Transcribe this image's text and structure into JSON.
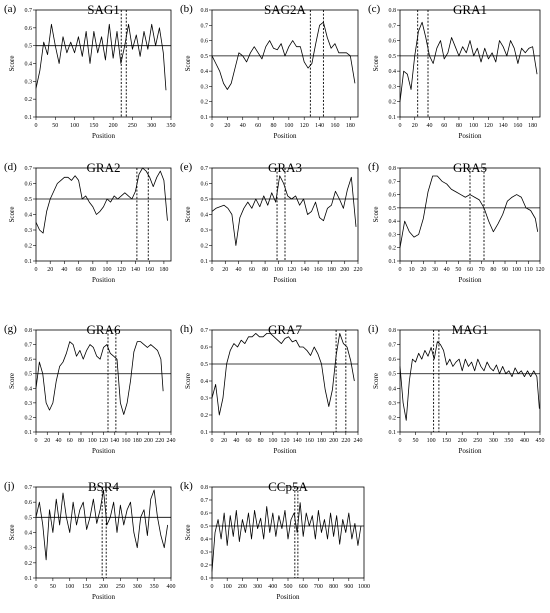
{
  "chart_data": [
    {
      "type": "line",
      "panel": "(a)",
      "title": "SAG1",
      "xlabel": "Position",
      "ylabel": "Score",
      "xlim": [
        0,
        350
      ],
      "xticks": [
        0,
        50,
        100,
        150,
        200,
        250,
        300,
        350
      ],
      "ylim": [
        0.1,
        0.7
      ],
      "yticks": [
        0.1,
        0.2,
        0.3,
        0.4,
        0.5,
        0.6,
        0.7
      ],
      "threshold": 0.5,
      "epitope_bounds": [
        221,
        234
      ],
      "x": [
        0,
        10,
        20,
        30,
        40,
        50,
        60,
        70,
        80,
        90,
        100,
        110,
        120,
        130,
        140,
        150,
        160,
        170,
        180,
        190,
        200,
        210,
        220,
        230,
        240,
        250,
        260,
        270,
        280,
        290,
        300,
        310,
        320,
        330,
        337
      ],
      "values": [
        0.26,
        0.36,
        0.52,
        0.45,
        0.62,
        0.5,
        0.4,
        0.55,
        0.46,
        0.52,
        0.46,
        0.55,
        0.44,
        0.58,
        0.4,
        0.58,
        0.46,
        0.55,
        0.42,
        0.62,
        0.43,
        0.58,
        0.4,
        0.5,
        0.62,
        0.48,
        0.56,
        0.44,
        0.58,
        0.48,
        0.62,
        0.5,
        0.6,
        0.46,
        0.25
      ]
    },
    {
      "type": "line",
      "panel": "(b)",
      "title": "SAG2A",
      "xlabel": "Position",
      "ylabel": "Score",
      "xlim": [
        0,
        190
      ],
      "xticks": [
        0,
        20,
        40,
        60,
        80,
        100,
        120,
        140,
        160,
        180
      ],
      "ylim": [
        0.1,
        0.8
      ],
      "yticks": [
        0.1,
        0.2,
        0.3,
        0.4,
        0.5,
        0.6,
        0.7,
        0.8
      ],
      "threshold": 0.5,
      "epitope_bounds": [
        128,
        145
      ],
      "x": [
        0,
        5,
        10,
        15,
        20,
        25,
        30,
        35,
        40,
        45,
        50,
        55,
        60,
        65,
        70,
        75,
        80,
        85,
        90,
        95,
        100,
        105,
        110,
        115,
        120,
        125,
        130,
        135,
        140,
        145,
        150,
        155,
        160,
        165,
        170,
        175,
        180,
        186
      ],
      "values": [
        0.5,
        0.45,
        0.4,
        0.32,
        0.28,
        0.32,
        0.42,
        0.52,
        0.5,
        0.46,
        0.52,
        0.56,
        0.52,
        0.48,
        0.56,
        0.6,
        0.55,
        0.54,
        0.58,
        0.5,
        0.56,
        0.6,
        0.56,
        0.56,
        0.46,
        0.42,
        0.45,
        0.58,
        0.7,
        0.72,
        0.62,
        0.55,
        0.58,
        0.52,
        0.52,
        0.52,
        0.5,
        0.32
      ]
    },
    {
      "type": "line",
      "panel": "(c)",
      "title": "GRA1",
      "xlabel": "Position",
      "ylabel": "Score",
      "xlim": [
        0,
        190
      ],
      "xticks": [
        0,
        20,
        40,
        60,
        80,
        100,
        120,
        140,
        160,
        180
      ],
      "ylim": [
        0.1,
        0.8
      ],
      "yticks": [
        0.1,
        0.2,
        0.3,
        0.4,
        0.5,
        0.6,
        0.7,
        0.8
      ],
      "threshold": 0.5,
      "epitope_bounds": [
        24,
        38
      ],
      "x": [
        0,
        5,
        10,
        15,
        20,
        25,
        30,
        35,
        40,
        45,
        50,
        55,
        60,
        65,
        70,
        75,
        80,
        85,
        90,
        95,
        100,
        105,
        110,
        115,
        120,
        125,
        130,
        135,
        140,
        145,
        150,
        155,
        160,
        165,
        170,
        175,
        180,
        186
      ],
      "values": [
        0.2,
        0.4,
        0.38,
        0.28,
        0.5,
        0.66,
        0.72,
        0.62,
        0.5,
        0.45,
        0.55,
        0.6,
        0.48,
        0.52,
        0.62,
        0.56,
        0.5,
        0.56,
        0.52,
        0.6,
        0.5,
        0.55,
        0.46,
        0.55,
        0.48,
        0.52,
        0.46,
        0.6,
        0.56,
        0.5,
        0.6,
        0.55,
        0.45,
        0.55,
        0.52,
        0.55,
        0.56,
        0.38
      ]
    },
    {
      "type": "line",
      "panel": "(d)",
      "title": "GRA2",
      "xlabel": "Position",
      "ylabel": "Score",
      "xlim": [
        0,
        190
      ],
      "xticks": [
        0,
        20,
        40,
        60,
        80,
        100,
        120,
        140,
        160,
        180
      ],
      "ylim": [
        0.1,
        0.7
      ],
      "yticks": [
        0.1,
        0.2,
        0.3,
        0.4,
        0.5,
        0.6,
        0.7
      ],
      "threshold": 0.5,
      "epitope_bounds": [
        142,
        158
      ],
      "x": [
        0,
        5,
        10,
        15,
        20,
        25,
        30,
        35,
        40,
        45,
        50,
        55,
        60,
        65,
        70,
        75,
        80,
        85,
        90,
        95,
        100,
        105,
        110,
        115,
        120,
        125,
        130,
        135,
        140,
        145,
        150,
        155,
        160,
        165,
        170,
        175,
        180,
        185
      ],
      "values": [
        0.35,
        0.3,
        0.28,
        0.42,
        0.5,
        0.55,
        0.6,
        0.62,
        0.64,
        0.64,
        0.62,
        0.65,
        0.62,
        0.5,
        0.52,
        0.48,
        0.45,
        0.4,
        0.42,
        0.45,
        0.5,
        0.48,
        0.52,
        0.5,
        0.52,
        0.54,
        0.52,
        0.5,
        0.55,
        0.66,
        0.7,
        0.68,
        0.64,
        0.58,
        0.64,
        0.68,
        0.62,
        0.36
      ]
    },
    {
      "type": "line",
      "panel": "(e)",
      "title": "GRA3",
      "xlabel": "Position",
      "ylabel": "Score",
      "xlim": [
        0,
        220
      ],
      "xticks": [
        0,
        20,
        40,
        60,
        80,
        100,
        120,
        140,
        160,
        180,
        200,
        220
      ],
      "ylim": [
        0.1,
        0.7
      ],
      "yticks": [
        0.1,
        0.2,
        0.3,
        0.4,
        0.5,
        0.6,
        0.7
      ],
      "threshold": 0.5,
      "epitope_bounds": [
        98,
        110
      ],
      "x": [
        0,
        6,
        12,
        18,
        24,
        30,
        36,
        42,
        48,
        54,
        60,
        66,
        72,
        78,
        84,
        90,
        96,
        102,
        108,
        114,
        120,
        126,
        132,
        138,
        144,
        150,
        156,
        162,
        168,
        174,
        180,
        186,
        192,
        198,
        204,
        210,
        217
      ],
      "values": [
        0.42,
        0.44,
        0.45,
        0.46,
        0.44,
        0.4,
        0.2,
        0.38,
        0.44,
        0.48,
        0.44,
        0.5,
        0.45,
        0.52,
        0.46,
        0.54,
        0.48,
        0.65,
        0.6,
        0.52,
        0.5,
        0.52,
        0.46,
        0.5,
        0.4,
        0.42,
        0.48,
        0.38,
        0.36,
        0.44,
        0.46,
        0.55,
        0.5,
        0.44,
        0.56,
        0.64,
        0.32
      ]
    },
    {
      "type": "line",
      "panel": "(f)",
      "title": "GRA5",
      "xlabel": "Position",
      "ylabel": "Score",
      "xlim": [
        0,
        120
      ],
      "xticks": [
        0,
        10,
        20,
        30,
        40,
        50,
        60,
        70,
        80,
        90,
        100,
        110,
        120
      ],
      "ylim": [
        0.1,
        0.8
      ],
      "yticks": [
        0.1,
        0.2,
        0.3,
        0.4,
        0.5,
        0.6,
        0.7,
        0.8
      ],
      "threshold": 0.5,
      "epitope_bounds": [
        60,
        72
      ],
      "x": [
        0,
        4,
        8,
        12,
        16,
        20,
        24,
        28,
        32,
        36,
        40,
        44,
        48,
        52,
        56,
        60,
        64,
        68,
        72,
        76,
        80,
        84,
        88,
        92,
        96,
        100,
        104,
        108,
        112,
        116,
        118
      ],
      "values": [
        0.2,
        0.4,
        0.32,
        0.28,
        0.3,
        0.42,
        0.62,
        0.74,
        0.74,
        0.7,
        0.68,
        0.64,
        0.62,
        0.6,
        0.58,
        0.6,
        0.58,
        0.56,
        0.5,
        0.4,
        0.32,
        0.38,
        0.45,
        0.55,
        0.58,
        0.6,
        0.58,
        0.5,
        0.48,
        0.42,
        0.32
      ]
    },
    {
      "type": "line",
      "panel": "(g)",
      "title": "GRA6",
      "xlabel": "Position",
      "ylabel": "Score",
      "xlim": [
        0,
        240
      ],
      "xticks": [
        0,
        20,
        40,
        60,
        80,
        100,
        120,
        140,
        160,
        180,
        200,
        220,
        240
      ],
      "ylim": [
        0.1,
        0.8
      ],
      "yticks": [
        0.1,
        0.2,
        0.3,
        0.4,
        0.5,
        0.6,
        0.7,
        0.8
      ],
      "threshold": 0.5,
      "epitope_bounds": [
        128,
        142
      ],
      "x": [
        0,
        6,
        12,
        18,
        24,
        30,
        36,
        42,
        48,
        54,
        60,
        66,
        72,
        78,
        84,
        90,
        96,
        102,
        108,
        114,
        120,
        126,
        132,
        138,
        144,
        150,
        156,
        162,
        168,
        174,
        180,
        186,
        192,
        198,
        204,
        210,
        216,
        222,
        226
      ],
      "values": [
        0.4,
        0.58,
        0.5,
        0.3,
        0.25,
        0.3,
        0.45,
        0.55,
        0.58,
        0.64,
        0.72,
        0.7,
        0.62,
        0.66,
        0.6,
        0.66,
        0.7,
        0.68,
        0.62,
        0.6,
        0.68,
        0.7,
        0.64,
        0.62,
        0.6,
        0.3,
        0.22,
        0.3,
        0.45,
        0.65,
        0.72,
        0.72,
        0.7,
        0.68,
        0.7,
        0.68,
        0.66,
        0.6,
        0.38
      ]
    },
    {
      "type": "line",
      "panel": "(h)",
      "title": "GRA7",
      "xlabel": "Position",
      "ylabel": "Score",
      "xlim": [
        0,
        240
      ],
      "xticks": [
        0,
        20,
        40,
        60,
        80,
        100,
        120,
        140,
        160,
        180,
        200,
        220,
        240
      ],
      "ylim": [
        0.1,
        0.7
      ],
      "yticks": [
        0.1,
        0.2,
        0.3,
        0.4,
        0.5,
        0.6,
        0.7
      ],
      "threshold": 0.5,
      "epitope_bounds": [
        204,
        220
      ],
      "x": [
        0,
        6,
        12,
        18,
        24,
        30,
        36,
        42,
        48,
        54,
        60,
        66,
        72,
        78,
        84,
        90,
        96,
        102,
        108,
        114,
        120,
        126,
        132,
        138,
        144,
        150,
        156,
        162,
        168,
        174,
        180,
        186,
        192,
        198,
        204,
        210,
        216,
        222,
        228,
        234
      ],
      "values": [
        0.3,
        0.38,
        0.2,
        0.3,
        0.5,
        0.58,
        0.62,
        0.6,
        0.64,
        0.62,
        0.66,
        0.66,
        0.68,
        0.66,
        0.66,
        0.68,
        0.68,
        0.66,
        0.64,
        0.62,
        0.65,
        0.66,
        0.63,
        0.64,
        0.6,
        0.6,
        0.58,
        0.55,
        0.6,
        0.56,
        0.5,
        0.35,
        0.25,
        0.35,
        0.55,
        0.68,
        0.62,
        0.6,
        0.52,
        0.4
      ]
    },
    {
      "type": "line",
      "panel": "(i)",
      "title": "MAG1",
      "xlabel": "Position",
      "ylabel": "Score",
      "xlim": [
        0,
        450
      ],
      "xticks": [
        0,
        50,
        100,
        150,
        200,
        250,
        300,
        350,
        400,
        450
      ],
      "ylim": [
        0.1,
        0.8
      ],
      "yticks": [
        0.1,
        0.2,
        0.3,
        0.4,
        0.5,
        0.6,
        0.7,
        0.8
      ],
      "threshold": 0.5,
      "epitope_bounds": [
        108,
        125
      ],
      "x": [
        0,
        10,
        20,
        30,
        40,
        50,
        60,
        70,
        80,
        90,
        100,
        110,
        120,
        130,
        140,
        150,
        160,
        170,
        180,
        190,
        200,
        210,
        220,
        230,
        240,
        250,
        260,
        270,
        280,
        290,
        300,
        310,
        320,
        330,
        340,
        350,
        360,
        370,
        380,
        390,
        400,
        410,
        420,
        430,
        440,
        448
      ],
      "values": [
        0.55,
        0.3,
        0.18,
        0.45,
        0.6,
        0.58,
        0.64,
        0.6,
        0.66,
        0.62,
        0.68,
        0.6,
        0.72,
        0.7,
        0.66,
        0.56,
        0.6,
        0.55,
        0.58,
        0.6,
        0.52,
        0.6,
        0.55,
        0.58,
        0.52,
        0.6,
        0.55,
        0.52,
        0.58,
        0.54,
        0.52,
        0.56,
        0.5,
        0.55,
        0.5,
        0.52,
        0.48,
        0.54,
        0.5,
        0.52,
        0.48,
        0.52,
        0.48,
        0.52,
        0.48,
        0.26
      ]
    },
    {
      "type": "line",
      "panel": "(j)",
      "title": "BSR4",
      "xlabel": "Position",
      "ylabel": "Score",
      "xlim": [
        0,
        400
      ],
      "xticks": [
        0,
        50,
        100,
        150,
        200,
        250,
        300,
        350,
        400
      ],
      "ylim": [
        0.1,
        0.7
      ],
      "yticks": [
        0.1,
        0.2,
        0.3,
        0.4,
        0.5,
        0.6,
        0.7
      ],
      "threshold": 0.5,
      "epitope_bounds": [
        196,
        208
      ],
      "x": [
        0,
        10,
        20,
        30,
        40,
        50,
        60,
        70,
        80,
        90,
        100,
        110,
        120,
        130,
        140,
        150,
        160,
        170,
        180,
        190,
        200,
        210,
        220,
        230,
        240,
        250,
        260,
        270,
        280,
        290,
        300,
        310,
        320,
        330,
        340,
        350,
        360,
        370,
        380,
        390
      ],
      "values": [
        0.5,
        0.6,
        0.45,
        0.22,
        0.55,
        0.4,
        0.62,
        0.45,
        0.66,
        0.5,
        0.4,
        0.6,
        0.45,
        0.55,
        0.6,
        0.42,
        0.5,
        0.62,
        0.46,
        0.55,
        0.68,
        0.45,
        0.5,
        0.6,
        0.4,
        0.58,
        0.45,
        0.55,
        0.6,
        0.4,
        0.3,
        0.5,
        0.55,
        0.38,
        0.62,
        0.68,
        0.5,
        0.38,
        0.3,
        0.45
      ]
    },
    {
      "type": "line",
      "panel": "(k)",
      "title": "CCp5A",
      "xlabel": "Position",
      "ylabel": "Score",
      "xlim": [
        0,
        1000
      ],
      "xticks": [
        0,
        100,
        200,
        300,
        400,
        500,
        600,
        700,
        800,
        900,
        1000
      ],
      "ylim": [
        0.1,
        0.8
      ],
      "yticks": [
        0.1,
        0.2,
        0.3,
        0.4,
        0.5,
        0.6,
        0.7,
        0.8
      ],
      "threshold": 0.5,
      "epitope_bounds": [
        545,
        565
      ],
      "x": [
        0,
        20,
        40,
        60,
        80,
        100,
        120,
        140,
        160,
        180,
        200,
        220,
        240,
        260,
        280,
        300,
        320,
        340,
        360,
        380,
        400,
        420,
        440,
        460,
        480,
        500,
        520,
        540,
        560,
        580,
        600,
        620,
        640,
        660,
        680,
        700,
        720,
        740,
        760,
        780,
        800,
        820,
        840,
        860,
        880,
        900,
        920,
        940,
        960,
        980
      ],
      "values": [
        0.15,
        0.45,
        0.55,
        0.4,
        0.6,
        0.35,
        0.58,
        0.42,
        0.62,
        0.38,
        0.55,
        0.45,
        0.6,
        0.4,
        0.62,
        0.48,
        0.56,
        0.4,
        0.65,
        0.45,
        0.6,
        0.42,
        0.58,
        0.48,
        0.62,
        0.4,
        0.55,
        0.6,
        0.45,
        0.68,
        0.42,
        0.6,
        0.5,
        0.58,
        0.4,
        0.62,
        0.45,
        0.55,
        0.4,
        0.6,
        0.42,
        0.58,
        0.36,
        0.55,
        0.45,
        0.6,
        0.4,
        0.52,
        0.35,
        0.5
      ]
    }
  ]
}
